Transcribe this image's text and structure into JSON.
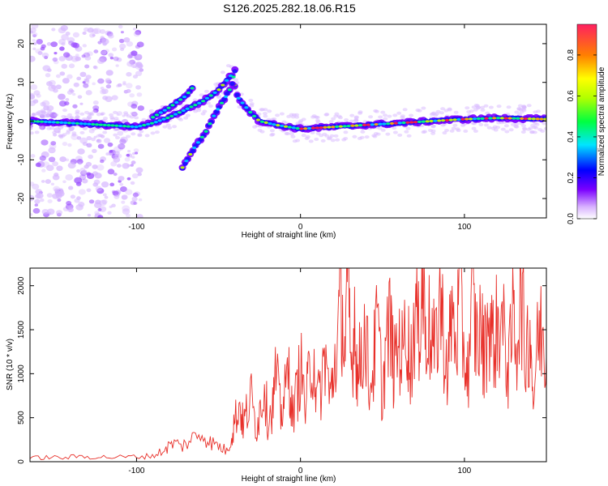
{
  "title": "S126.2025.282.18.06.R15",
  "colors": {
    "snr_line": "#e8302a",
    "frame": "#000000"
  },
  "chart_data": [
    {
      "type": "heatmap",
      "xlabel": "Height of straight line (km)",
      "ylabel": "Frequency (Hz)",
      "xlim": [
        -165,
        150
      ],
      "ylim": [
        -25,
        25
      ],
      "xticks": [
        -100,
        0,
        100
      ],
      "yticks": [
        -20,
        -10,
        0,
        10,
        20
      ],
      "colorbar": {
        "label": "Normalized spectral amplitude",
        "range": [
          0,
          0.95
        ],
        "ticks": [
          0.0,
          0.2,
          0.4,
          0.6,
          0.8
        ]
      },
      "ridges": [
        {
          "name": "carrier",
          "points": [
            [
              -165,
              0
            ],
            [
              -140,
              -0.5
            ],
            [
              -120,
              -1
            ],
            [
              -100,
              -1.5
            ],
            [
              -90,
              -0.5
            ],
            [
              -80,
              1
            ],
            [
              -70,
              3
            ],
            [
              -60,
              5
            ],
            [
              -50,
              8
            ],
            [
              -42,
              12
            ],
            [
              -38,
              6
            ],
            [
              -34,
              4
            ],
            [
              -30,
              2
            ],
            [
              -25,
              0
            ],
            [
              -15,
              -1
            ],
            [
              0,
              -2
            ],
            [
              20,
              -1.5
            ],
            [
              40,
              -1
            ],
            [
              60,
              -0.5
            ],
            [
              80,
              0
            ],
            [
              100,
              0.5
            ],
            [
              120,
              0.8
            ],
            [
              150,
              0.5
            ]
          ]
        },
        {
          "name": "upper-branch",
          "points": [
            [
              -90,
              1
            ],
            [
              -80,
              3.5
            ],
            [
              -70,
              6.5
            ],
            [
              -65,
              9
            ]
          ]
        },
        {
          "name": "lower-branch",
          "points": [
            [
              -72,
              -12
            ],
            [
              -65,
              -7
            ],
            [
              -58,
              -3
            ],
            [
              -52,
              2
            ],
            [
              -46,
              6
            ],
            [
              -42,
              9
            ],
            [
              -40,
              13
            ]
          ]
        }
      ]
    },
    {
      "type": "line",
      "xlabel": "Height of straight line (km)",
      "ylabel": "SNR (10 * v/v)",
      "xlim": [
        -165,
        150
      ],
      "ylim": [
        0,
        2200
      ],
      "xticks": [
        -100,
        0,
        100
      ],
      "yticks": [
        0,
        500,
        1000,
        1500,
        2000
      ],
      "series": [
        {
          "name": "SNR",
          "x": [
            -165,
            -155,
            -145,
            -135,
            -125,
            -115,
            -105,
            -95,
            -88,
            -82,
            -78,
            -72,
            -66,
            -60,
            -55,
            -50,
            -45,
            -42,
            -40,
            -37,
            -35,
            -33,
            -30,
            -27,
            -25,
            -22,
            -20,
            -17,
            -15,
            -12,
            -10,
            -7,
            -5,
            -2,
            0,
            3,
            5,
            8,
            10,
            13,
            15,
            18,
            20,
            23,
            25,
            27,
            29,
            31,
            33,
            35,
            37,
            40,
            42,
            45,
            47,
            50,
            52,
            55,
            57,
            60,
            62,
            65,
            67,
            70,
            72,
            74,
            75,
            77,
            80,
            82,
            85,
            87,
            90,
            92,
            95,
            97,
            100,
            102,
            105,
            107,
            110,
            112,
            115,
            117,
            120,
            122,
            125,
            127,
            130,
            132,
            135,
            137,
            140,
            142,
            145,
            147,
            150
          ],
          "values": [
            40,
            50,
            45,
            60,
            55,
            50,
            55,
            60,
            80,
            150,
            210,
            180,
            260,
            320,
            220,
            180,
            120,
            300,
            480,
            650,
            420,
            550,
            720,
            380,
            550,
            900,
            480,
            620,
            1000,
            520,
            700,
            1050,
            520,
            800,
            1100,
            600,
            950,
            1300,
            650,
            900,
            1250,
            700,
            1000,
            1500,
            1900,
            1200,
            2000,
            1000,
            1700,
            900,
            1300,
            1500,
            800,
            1200,
            1600,
            700,
            1300,
            1550,
            1000,
            1400,
            1200,
            1600,
            1000,
            1800,
            1400,
            2150,
            1800,
            1600,
            1400,
            1200,
            1900,
            1500,
            1000,
            1700,
            1300,
            1900,
            1200,
            1000,
            1800,
            1400,
            1500,
            1200,
            1700,
            1350,
            1500,
            1600,
            1300,
            1000,
            1700,
            1400,
            1900,
            1200,
            1600,
            700,
            1400,
            1500,
            1200
          ]
        }
      ]
    }
  ]
}
